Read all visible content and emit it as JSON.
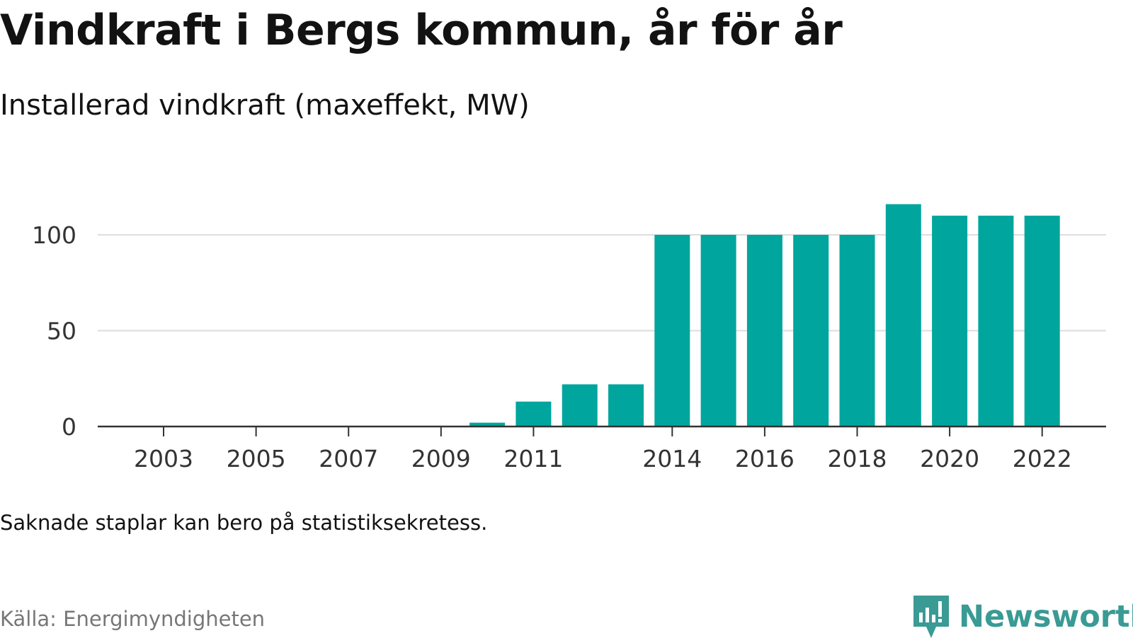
{
  "header": {
    "title": "Vindkraft i Bergs kommun, år för år",
    "subtitle": "Installerad vindkraft (maxeffekt, MW)"
  },
  "footer": {
    "note": "Saknade staplar kan bero på statistiksekretess.",
    "source": "Källa: Energimyndigheten",
    "brand": "Newsworthy"
  },
  "colors": {
    "bar": "#00a59d",
    "grid": "#dddddd",
    "axis": "#333333",
    "brand": "#3a9a94"
  },
  "chart_data": {
    "type": "bar",
    "title": "Vindkraft i Bergs kommun, år för år",
    "subtitle": "Installerad vindkraft (maxeffekt, MW)",
    "xlabel": "",
    "ylabel": "",
    "categories": [
      2003,
      2004,
      2005,
      2006,
      2007,
      2008,
      2009,
      2010,
      2011,
      2012,
      2013,
      2014,
      2015,
      2016,
      2017,
      2018,
      2019,
      2020,
      2021,
      2022
    ],
    "values": [
      0,
      0,
      0,
      0,
      0,
      0,
      0,
      2,
      13,
      22,
      22,
      100,
      100,
      100,
      100,
      100,
      116,
      110,
      110,
      110
    ],
    "x_tick_labels": [
      "2003",
      "2005",
      "2007",
      "2009",
      "2011",
      "2014",
      "2016",
      "2018",
      "2020",
      "2022"
    ],
    "y_ticks": [
      0,
      50,
      100
    ],
    "ylim": [
      0,
      116
    ],
    "grid": true,
    "legend": "none"
  }
}
